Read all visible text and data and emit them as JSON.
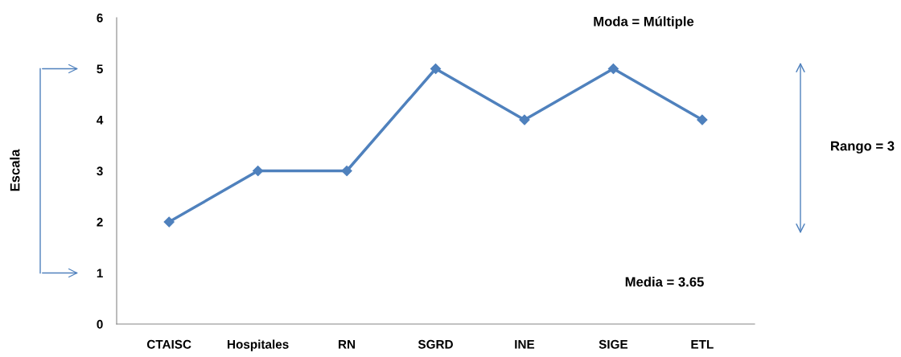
{
  "chart_data": {
    "type": "line",
    "categories": [
      "CTAISC",
      "Hospitales",
      "RN",
      "SGRD",
      "INE",
      "SIGE",
      "ETL"
    ],
    "series": [
      {
        "color": "#4f81bd",
        "values": [
          2,
          3,
          3,
          5,
          4,
          5,
          4
        ]
      }
    ],
    "ylim": [
      0,
      6
    ],
    "yticks": [
      0,
      1,
      2,
      3,
      4,
      5,
      6
    ],
    "marker": "diamond",
    "line_style": "solid",
    "grid": false,
    "legend": false,
    "annotations": [
      "Moda = Múltiple",
      "Media = 3.65",
      "Rango = 3",
      "Escala"
    ]
  }
}
